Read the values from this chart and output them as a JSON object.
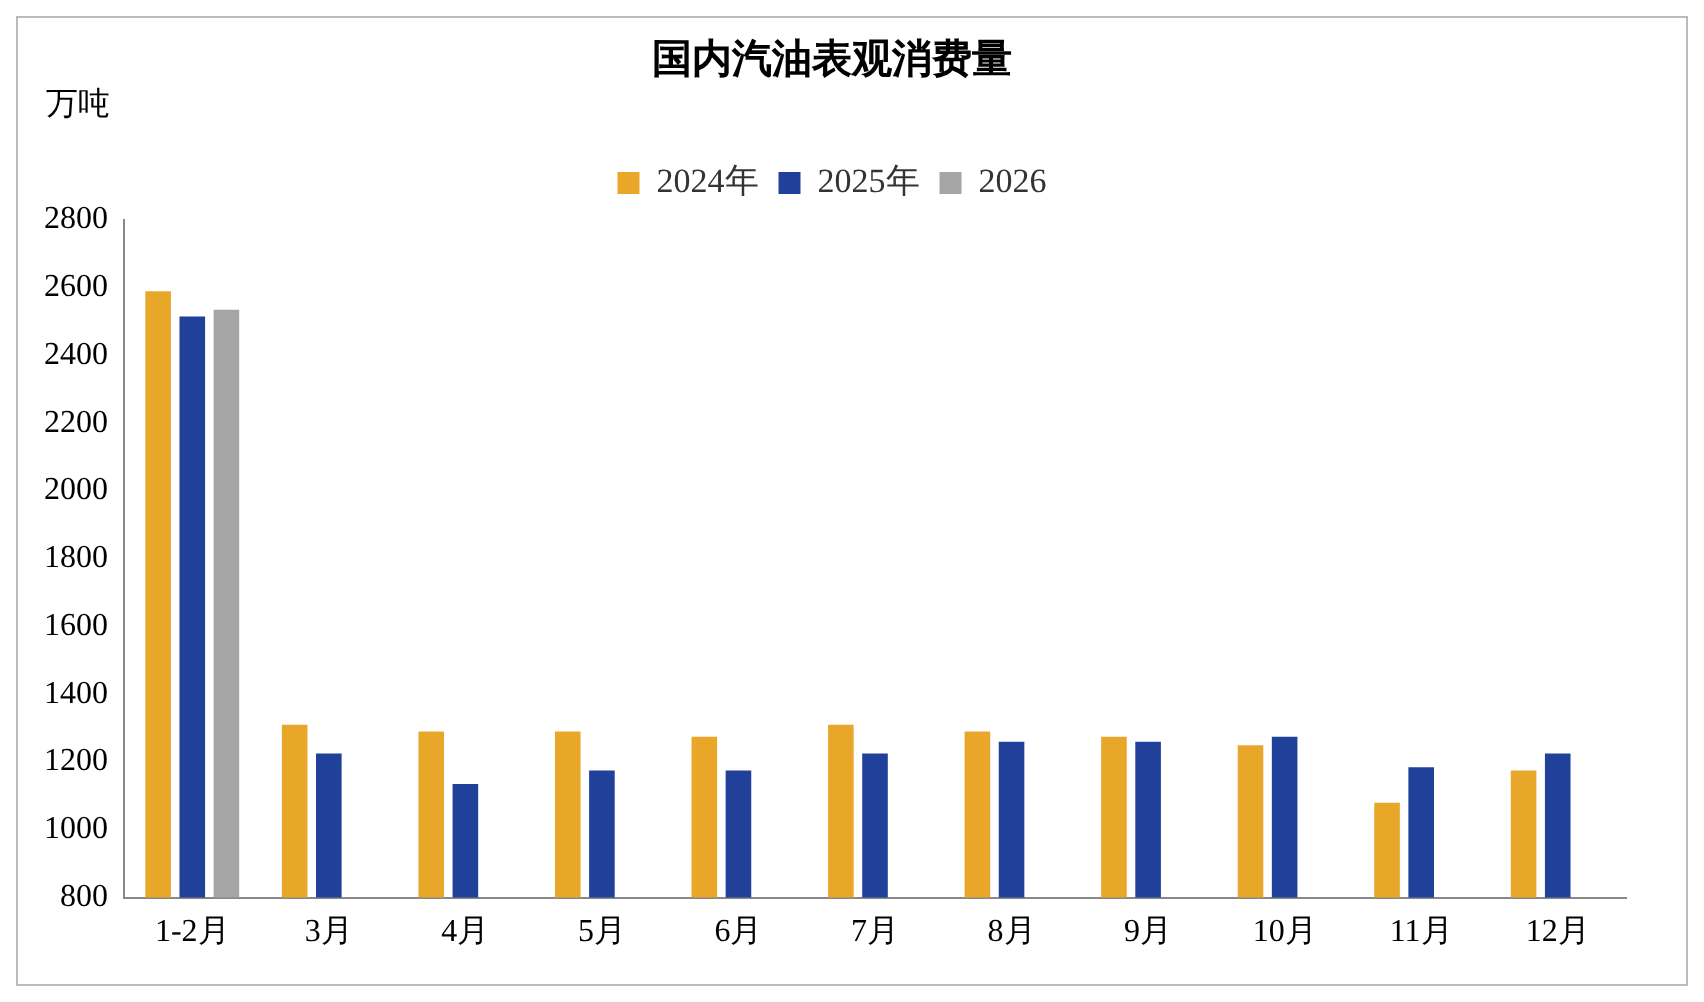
{
  "chart_data": {
    "type": "bar",
    "title": "国内汽油表观消费量",
    "ylabel": "万吨",
    "categories": [
      "1-2月",
      "3月",
      "4月",
      "5月",
      "6月",
      "7月",
      "8月",
      "9月",
      "10月",
      "11月",
      "12月"
    ],
    "series": [
      {
        "name": "2024年",
        "color": "#e9a72a",
        "values": [
          2590,
          1310,
          1290,
          1290,
          1275,
          1310,
          1290,
          1275,
          1250,
          1080,
          1175
        ]
      },
      {
        "name": "2025年",
        "color": "#20409a",
        "values": [
          2515,
          1225,
          1135,
          1175,
          1175,
          1225,
          1260,
          1260,
          1275,
          1185,
          1225
        ]
      },
      {
        "name": "2026",
        "color": "#a5a5a5",
        "values": [
          2535,
          null,
          null,
          null,
          null,
          null,
          null,
          null,
          null,
          null,
          null
        ]
      }
    ],
    "ylim": [
      800,
      2800
    ],
    "yticks": [
      800,
      1000,
      1200,
      1400,
      1600,
      1800,
      2000,
      2200,
      2400,
      2600,
      2800
    ],
    "grid": false,
    "legend": "top"
  }
}
